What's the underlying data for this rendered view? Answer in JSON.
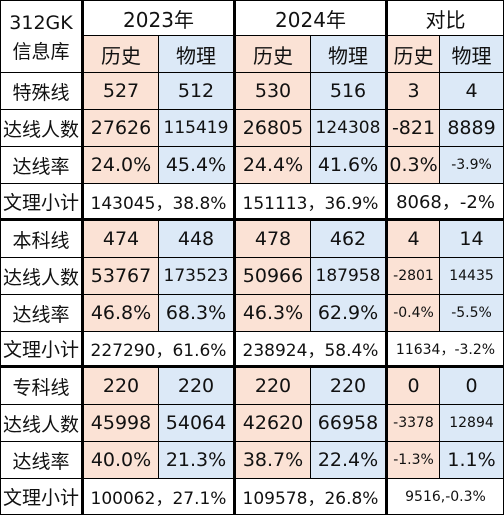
{
  "corner": "312GK\n信息库",
  "years": [
    "2023年",
    "2024年",
    "对比"
  ],
  "subjects": [
    "历史",
    "物理"
  ],
  "sections": [
    {
      "rows": [
        {
          "label": "特殊线",
          "type": "split",
          "values": [
            "527",
            "512",
            "530",
            "516",
            "3",
            "4"
          ]
        },
        {
          "label": "达线人数",
          "type": "split",
          "values": [
            "27626",
            "115419",
            "26805",
            "124308",
            "-821",
            "8889"
          ]
        },
        {
          "label": "达线率",
          "type": "split",
          "values": [
            "24.0%",
            "45.4%",
            "24.4%",
            "41.6%",
            "0.3%",
            "-3.9%"
          ]
        },
        {
          "label": "文理小计",
          "type": "merged",
          "values": [
            "143045，38.8%",
            "151113，36.9%",
            "8068，-2%"
          ]
        }
      ]
    },
    {
      "rows": [
        {
          "label": "本科线",
          "type": "split",
          "values": [
            "474",
            "448",
            "478",
            "462",
            "4",
            "14"
          ]
        },
        {
          "label": "达线人数",
          "type": "split",
          "values": [
            "53767",
            "173523",
            "50966",
            "187958",
            "-2801",
            "14435"
          ]
        },
        {
          "label": "达线率",
          "type": "split",
          "values": [
            "46.8%",
            "68.3%",
            "46.3%",
            "62.9%",
            "-0.4%",
            "-5.5%"
          ]
        },
        {
          "label": "文理小计",
          "type": "merged",
          "values": [
            "227290，61.6%",
            "238924，58.4%",
            "11634，-3.2%"
          ]
        }
      ]
    },
    {
      "rows": [
        {
          "label": "专科线",
          "type": "split",
          "values": [
            "220",
            "220",
            "220",
            "220",
            "0",
            "0"
          ]
        },
        {
          "label": "达线人数",
          "type": "split",
          "values": [
            "45998",
            "54064",
            "42620",
            "66958",
            "-3378",
            "12894"
          ]
        },
        {
          "label": "达线率",
          "type": "split",
          "values": [
            "40.0%",
            "21.3%",
            "38.7%",
            "22.4%",
            "-1.3%",
            "1.1%"
          ]
        },
        {
          "label": "文理小计",
          "type": "merged",
          "values": [
            "100062，27.1%",
            "109578，26.8%",
            "9516,-0.3%"
          ]
        }
      ]
    }
  ],
  "colors": {
    "history_bg": "#fbe2d5",
    "physics_bg": "#dce9f7",
    "border": "#000000",
    "text": "#111111"
  }
}
